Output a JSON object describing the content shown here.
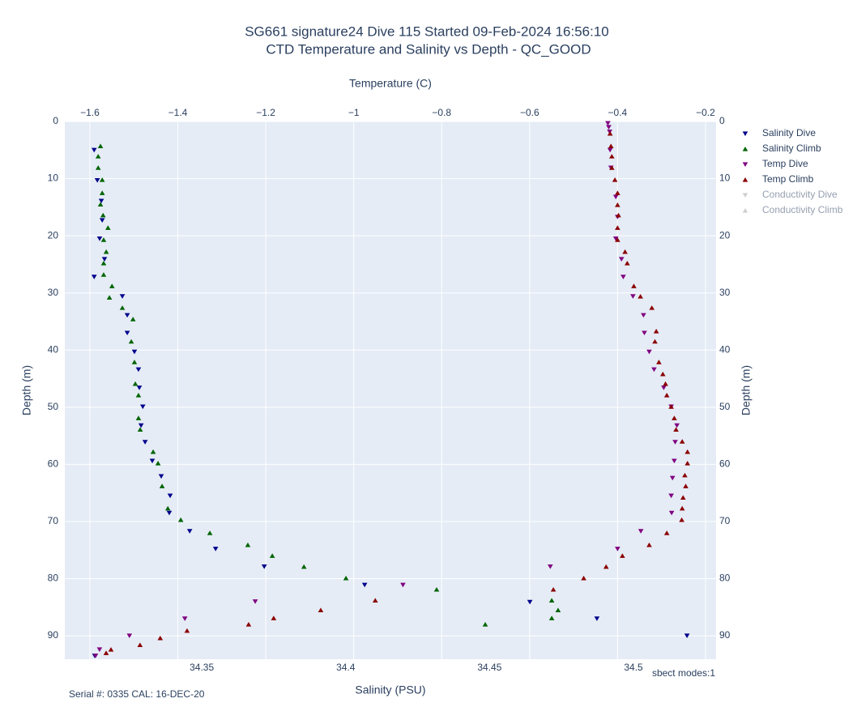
{
  "chart_data": {
    "type": "scatter",
    "title": "SG661 signature24 Dive 115 Started 09-Feb-2024 16:56:10",
    "subtitle": "CTD Temperature and Salinity vs Depth - QC_GOOD",
    "xlabel": "Salinity (PSU)",
    "x2label": "Temperature (C)",
    "ylabel": "Depth (m)",
    "annotations": [
      "Serial #: 0335  CAL: 16-DEC-20",
      "sbect modes:1"
    ],
    "xlim": [
      34.3024,
      34.5287
    ],
    "xticks": [
      34.35,
      34.4,
      34.45,
      34.5
    ],
    "x2lim": [
      -1.657,
      -0.176
    ],
    "x2ticks": [
      {
        "value": -1.6,
        "label": "−1.6"
      },
      {
        "value": -1.4,
        "label": "−1.4"
      },
      {
        "value": -1.2,
        "label": "−1.2"
      },
      {
        "value": -1,
        "label": "−1"
      },
      {
        "value": -0.8,
        "label": "−0.8"
      },
      {
        "value": -0.6,
        "label": "−0.6"
      },
      {
        "value": -0.4,
        "label": "−0.4"
      },
      {
        "value": -0.2,
        "label": "−0.2"
      }
    ],
    "ylim": [
      0,
      94.1
    ],
    "yreversed": true,
    "yticks": [
      0,
      10,
      20,
      30,
      40,
      50,
      60,
      70,
      80,
      90
    ],
    "grid": true,
    "legend": "right",
    "series": [
      {
        "name": "Salinity Dive",
        "color": "#00008b",
        "marker": "triangle-down",
        "axis": "x",
        "visible": true,
        "x": [
          34.3126,
          34.3137,
          34.3151,
          34.3154,
          34.3145,
          34.3162,
          34.3126,
          34.3224,
          34.3241,
          34.3241,
          34.3266,
          34.328,
          34.3283,
          34.3295,
          34.3289,
          34.3303,
          34.3328,
          34.3359,
          34.339,
          34.3387,
          34.3458,
          34.3548,
          34.3717,
          34.4066,
          34.464,
          34.4873,
          34.5186,
          34.3128
        ],
        "y": [
          5.0,
          10.3,
          13.9,
          17.3,
          20.5,
          24.1,
          27.2,
          30.6,
          33.9,
          37.0,
          40.3,
          43.4,
          46.6,
          49.9,
          53.2,
          56.1,
          59.4,
          62.1,
          65.5,
          68.5,
          71.7,
          74.8,
          77.9,
          81.1,
          84.1,
          87.0,
          90.0,
          93.5
        ]
      },
      {
        "name": "Salinity Climb",
        "color": "#006400",
        "marker": "triangle-up",
        "axis": "x",
        "visible": true,
        "x": [
          34.3148,
          34.314,
          34.314,
          34.3154,
          34.3154,
          34.3148,
          34.3157,
          34.3174,
          34.3159,
          34.3168,
          34.3159,
          34.3159,
          34.3188,
          34.3179,
          34.3224,
          34.3261,
          34.3255,
          34.3266,
          34.3269,
          34.328,
          34.328,
          34.3286,
          34.3331,
          34.3348,
          34.3362,
          34.3382,
          34.3427,
          34.3528,
          34.366,
          34.3745,
          34.3855,
          34.4001,
          34.4316,
          34.4716,
          34.4738,
          34.4716,
          34.4485
        ],
        "y": [
          4.3,
          6.1,
          8.1,
          10.2,
          12.5,
          14.5,
          16.4,
          18.6,
          20.7,
          22.8,
          24.8,
          26.8,
          28.8,
          30.8,
          32.6,
          34.6,
          38.5,
          42.1,
          45.9,
          47.9,
          51.9,
          53.9,
          57.8,
          59.8,
          63.8,
          67.7,
          69.7,
          72.0,
          74.1,
          76.0,
          77.9,
          79.9,
          81.9,
          83.8,
          85.5,
          86.9,
          88.0
        ]
      },
      {
        "name": "Temp Dive",
        "color": "#800080",
        "marker": "triangle-down",
        "axis": "x2",
        "visible": true,
        "x": [
          -0.422,
          -0.42,
          -0.418,
          -0.417,
          -0.415,
          -0.404,
          -0.4,
          -0.404,
          -0.391,
          -0.387,
          -0.365,
          -0.341,
          -0.339,
          -0.328,
          -0.317,
          -0.295,
          -0.278,
          -0.265,
          -0.269,
          -0.271,
          -0.275,
          -0.278,
          -0.277,
          -0.347,
          -0.4,
          -0.553,
          -0.888,
          -1.224,
          -1.384,
          -1.51,
          -1.578,
          -1.587
        ],
        "y": [
          0.3,
          1.0,
          1.8,
          5.0,
          8.1,
          13.2,
          16.7,
          20.5,
          24.1,
          27.2,
          30.6,
          33.9,
          37.0,
          40.3,
          43.4,
          46.6,
          49.9,
          53.2,
          56.1,
          59.4,
          62.4,
          65.5,
          68.5,
          71.7,
          74.8,
          77.9,
          81.1,
          84.0,
          87.0,
          90.0,
          92.4,
          93.5
        ]
      },
      {
        "name": "Temp Climb",
        "color": "#8b0000",
        "marker": "triangle-up",
        "axis": "x2",
        "visible": true,
        "x": [
          -0.417,
          -0.415,
          -0.413,
          -0.413,
          -0.406,
          -0.4,
          -0.4,
          -0.398,
          -0.4,
          -0.4,
          -0.383,
          -0.378,
          -0.363,
          -0.348,
          -0.322,
          -0.312,
          -0.315,
          -0.306,
          -0.297,
          -0.291,
          -0.288,
          -0.278,
          -0.271,
          -0.267,
          -0.253,
          -0.241,
          -0.241,
          -0.247,
          -0.245,
          -0.251,
          -0.253,
          -0.254,
          -0.288,
          -0.328,
          -0.389,
          -0.426,
          -0.477,
          -0.546,
          -0.951,
          -1.075,
          -1.182,
          -1.239,
          -1.379,
          -1.44,
          -1.486,
          -1.552,
          -1.563
        ],
        "y": [
          2.1,
          4.3,
          6.1,
          8.1,
          10.2,
          12.5,
          14.6,
          16.4,
          18.6,
          20.7,
          22.8,
          24.8,
          28.8,
          30.6,
          32.6,
          36.7,
          38.5,
          42.1,
          44.2,
          45.9,
          47.9,
          49.9,
          51.9,
          53.9,
          56.0,
          57.8,
          59.8,
          61.9,
          63.8,
          65.8,
          67.7,
          69.7,
          72.0,
          74.1,
          76.0,
          77.9,
          79.9,
          81.9,
          83.8,
          85.5,
          86.9,
          88.0,
          89.1,
          90.4,
          91.6,
          92.4,
          93.0
        ]
      },
      {
        "name": "Conductivity Dive",
        "color": "#a0a0a0",
        "marker": "triangle-down",
        "axis": "x",
        "visible": false,
        "x": [],
        "y": []
      },
      {
        "name": "Conductivity Climb",
        "color": "#a0a0a0",
        "marker": "triangle-up",
        "axis": "x",
        "visible": false,
        "x": [],
        "y": []
      }
    ]
  }
}
